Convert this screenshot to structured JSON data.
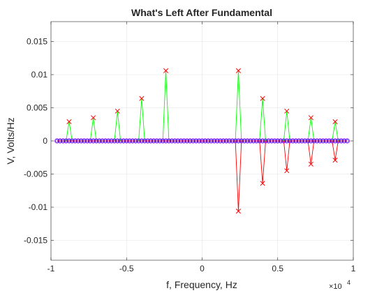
{
  "chart_data": {
    "type": "line",
    "title": "What's Left After Fundamental",
    "xlabel": "f, Frequency, Hz",
    "ylabel": "V, Volts/Hz",
    "x_exponent_label": "×10",
    "x_exponent_power": "4",
    "xlim": [
      -10000,
      10000
    ],
    "ylim": [
      -0.018,
      0.018
    ],
    "xticks": [
      -10000,
      -5000,
      0,
      5000,
      10000
    ],
    "xtick_labels": [
      "-1",
      "-0.5",
      "0",
      "0.5",
      "1"
    ],
    "yticks": [
      -0.015,
      -0.01,
      -0.005,
      0,
      0.005,
      0.01,
      0.015
    ],
    "ytick_labels": [
      "-0.015",
      "-0.01",
      "-0.005",
      "0",
      "0.005",
      "0.01",
      "0.015"
    ],
    "grid": true,
    "freq_range": [
      -9600,
      9600
    ],
    "samples": 97,
    "peaks": [
      {
        "f": -8800,
        "mag": 0.0029,
        "imag": 0
      },
      {
        "f": -7200,
        "mag": 0.0035,
        "imag": 0
      },
      {
        "f": -5600,
        "mag": 0.0045,
        "imag": 0
      },
      {
        "f": -4000,
        "mag": 0.0064,
        "imag": 0
      },
      {
        "f": -2400,
        "mag": 0.0106,
        "imag": 0
      },
      {
        "f": 2400,
        "mag": 0.0106,
        "imag": -0.0106
      },
      {
        "f": 4000,
        "mag": 0.0064,
        "imag": -0.0064
      },
      {
        "f": 5600,
        "mag": 0.0045,
        "imag": -0.0045
      },
      {
        "f": 7200,
        "mag": 0.0035,
        "imag": -0.0035
      },
      {
        "f": 8800,
        "mag": 0.0029,
        "imag": -0.0029
      }
    ],
    "colors": {
      "magnitude": "#00ff00",
      "imag_part": "#ff0000",
      "real_part": "#0000ff",
      "markers_o": "#a020f0",
      "marker_x": "#ff0000"
    }
  }
}
